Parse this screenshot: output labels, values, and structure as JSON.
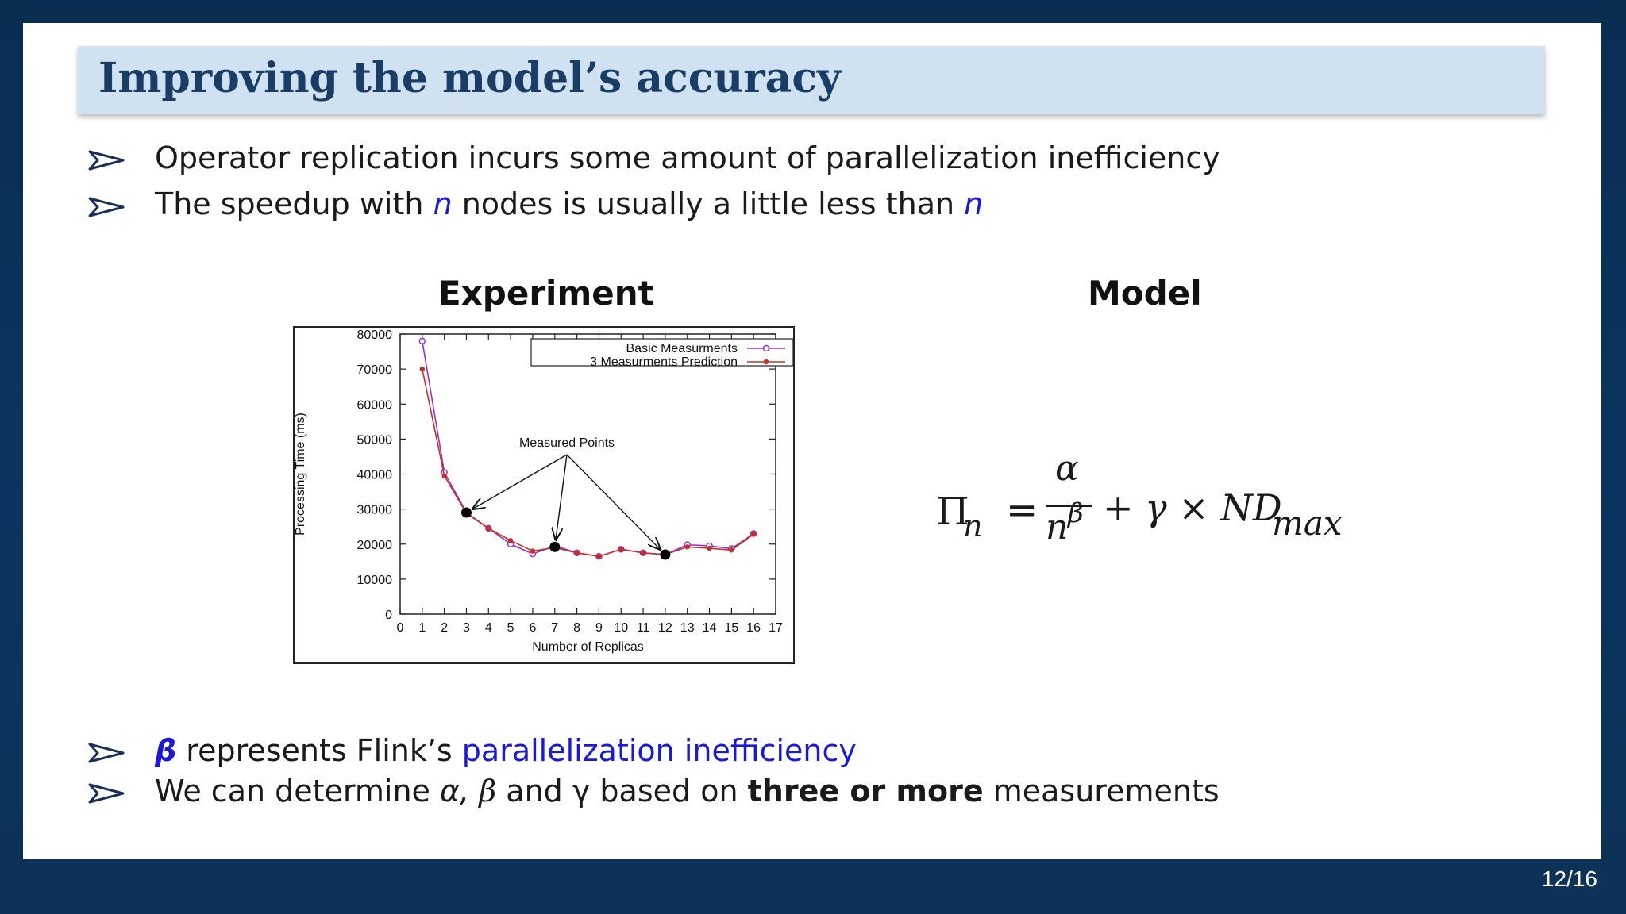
{
  "slide": {
    "title": "Improving the model’s accuracy",
    "bullets_top": [
      {
        "text": "Operator replication incurs some amount of parallelization inefficiency"
      },
      {
        "pre": "The speedup with ",
        "n1": "n",
        "mid": " nodes is usually a little less than ",
        "n2": "n"
      }
    ],
    "experiment_heading": "Experiment",
    "model_heading": "Model",
    "bullets_bottom": [
      {
        "beta": "β",
        "pre": " represents Flink’s ",
        "highlight": "parallelization inefficiency"
      },
      {
        "pre": "We can determine ",
        "alpha": "α,",
        "beta": " β",
        "mid": " and γ based on ",
        "bold": "three or more",
        "post": " measurements"
      }
    ],
    "formula": {
      "lhs": "Π",
      "lhs_sub": "n",
      "eq": "=",
      "numerator": "α",
      "denominator": "n",
      "den_sup": "β",
      "rest": "+ γ × ND",
      "rest_sub": "max"
    },
    "page_number": "12/16"
  },
  "colors": {
    "title_bar": "#d0e1f2",
    "title_text": "#1a3d66",
    "highlight_blue": "#1a1ad6",
    "series_basic": "#9b30c8",
    "series_prediction": "#c2302a"
  },
  "chart_data": {
    "type": "line",
    "xlabel": "Number of Replicas",
    "ylabel": "Processing Time (ms)",
    "xlim": [
      0,
      17
    ],
    "ylim": [
      0,
      80000
    ],
    "xticks": [
      0,
      1,
      2,
      3,
      4,
      5,
      6,
      7,
      8,
      9,
      10,
      11,
      12,
      13,
      14,
      15,
      16,
      17
    ],
    "yticks": [
      0,
      10000,
      20000,
      30000,
      40000,
      50000,
      60000,
      70000,
      80000
    ],
    "grid": false,
    "legend": "top-right",
    "series": [
      {
        "name": "Basic Measurments",
        "marker": "open-circle",
        "x": [
          1,
          2,
          3,
          4,
          5,
          6,
          7,
          8,
          9,
          10,
          11,
          12,
          13,
          14,
          15,
          16
        ],
        "y": [
          78000,
          40500,
          29000,
          24500,
          20000,
          17200,
          19500,
          17500,
          16500,
          18500,
          17500,
          17000,
          19800,
          19500,
          18700,
          23000
        ]
      },
      {
        "name": "3 Measurments Prediction",
        "marker": "filled-circle",
        "x": [
          1,
          2,
          3,
          4,
          5,
          6,
          7,
          8,
          9,
          10,
          11,
          12,
          13,
          14,
          15,
          16
        ],
        "y": [
          70000,
          39500,
          28800,
          24500,
          21000,
          18000,
          19000,
          17500,
          16500,
          18500,
          17500,
          17000,
          19200,
          18800,
          18300,
          22800
        ]
      }
    ],
    "annotation": {
      "text": "Measured Points",
      "points": [
        {
          "x": 3,
          "y": 29000
        },
        {
          "x": 7,
          "y": 19200
        },
        {
          "x": 12,
          "y": 17000
        }
      ]
    }
  }
}
